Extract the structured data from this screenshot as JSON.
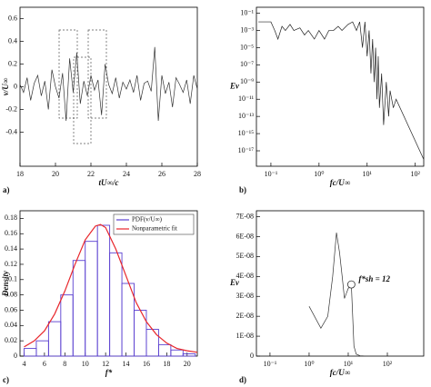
{
  "chart_data": [
    {
      "type": "line",
      "label": "a)",
      "xlabel": "tU∞/c",
      "ylabel": "v/U∞",
      "x": [
        18,
        18.2,
        18.4,
        18.6,
        18.8,
        19,
        19.2,
        19.4,
        19.6,
        19.8,
        20,
        20.2,
        20.4,
        20.6,
        20.8,
        21,
        21.2,
        21.4,
        21.6,
        21.8,
        22,
        22.2,
        22.4,
        22.6,
        22.8,
        23,
        23.2,
        23.4,
        23.6,
        23.8,
        24,
        24.2,
        24.4,
        24.6,
        24.8,
        25,
        25.2,
        25.4,
        25.6,
        25.8,
        26,
        26.2,
        26.4,
        26.6,
        26.8,
        27,
        27.2,
        27.4,
        27.6,
        27.8,
        28
      ],
      "series": [
        {
          "color": "#333333",
          "values": [
            0.02,
            -0.05,
            0.08,
            -0.12,
            0.03,
            0.1,
            -0.08,
            0.05,
            -0.2,
            0.15,
            0.0,
            -0.1,
            0.12,
            -0.3,
            0.25,
            -0.05,
            0.3,
            -0.15,
            0.05,
            -0.08,
            0.1,
            -0.03,
            0.06,
            -0.25,
            0.2,
            0.02,
            -0.06,
            0.08,
            -0.1,
            0.04,
            -0.02,
            0.06,
            -0.05,
            0.1,
            -0.12,
            0.03,
            0.05,
            -0.04,
            0.35,
            -0.3,
            0.1,
            -0.06,
            0.04,
            -0.18,
            0.08,
            0.02,
            -0.05,
            0.06,
            -0.15,
            0.1,
            -0.02
          ]
        }
      ],
      "xlim": [
        18,
        28
      ],
      "xticks": [
        18,
        20,
        22,
        24,
        26,
        28
      ],
      "ylim": [
        -0.7,
        0.7
      ],
      "yticks": [
        -0.4,
        -0.2,
        0,
        0.2,
        0.4,
        0.6
      ]
    },
    {
      "type": "line",
      "label": "b)",
      "xlabel": "fc/U∞",
      "ylabel": "Ev",
      "xlog": true,
      "ylog": true,
      "x": [
        0.055,
        0.08,
        0.1,
        0.12,
        0.14,
        0.17,
        0.2,
        0.25,
        0.3,
        0.4,
        0.5,
        0.6,
        0.8,
        1,
        1.3,
        1.6,
        2,
        2.5,
        3,
        4,
        5,
        6,
        7,
        8,
        9,
        10,
        11,
        12,
        13,
        14,
        15,
        16,
        17,
        18,
        20,
        22,
        25,
        28,
        30,
        35,
        40,
        150
      ],
      "series": [
        {
          "color": "#222222",
          "values": [
            0.01,
            0.01,
            0.01,
            0.001,
            0.0001,
            0.003,
            0.001,
            0.005,
            0.001,
            0.002,
            0.0003,
            0.001,
            0.0001,
            0.001,
            0.0001,
            0.001,
            0.001,
            0.003,
            0.001,
            0.005,
            0.01,
            0.001,
            0.01,
            1e-05,
            0.01,
            1e-06,
            0.001,
            1e-08,
            0.0001,
            1e-09,
            1e-05,
            1e-11,
            1e-06,
            1e-12,
            1e-08,
            1e-14,
            1e-09,
            1e-13,
            1e-10,
            1e-12,
            1e-11,
            1e-18
          ]
        }
      ],
      "xlim": [
        0.05,
        150
      ],
      "xticks": [
        {
          "value": 0.1,
          "label": "10⁻¹"
        },
        {
          "value": 1,
          "label": "10⁰"
        },
        {
          "value": 10,
          "label": "10¹"
        },
        {
          "value": 100,
          "label": "10²"
        }
      ],
      "ylim": [
        1.6e-19,
        0.5
      ],
      "yticks": [
        {
          "value": 0.1,
          "label": "10⁻¹"
        },
        {
          "value": 0.001,
          "label": "10⁻³"
        },
        {
          "value": 1e-05,
          "label": "10⁻⁵"
        },
        {
          "value": 1e-07,
          "label": "10⁻⁷"
        },
        {
          "value": 1e-09,
          "label": "10⁻⁹"
        },
        {
          "value": 1e-11,
          "label": "10⁻¹¹"
        },
        {
          "value": 1e-13,
          "label": "10⁻¹³"
        },
        {
          "value": 1e-15,
          "label": "10⁻¹⁵"
        },
        {
          "value": 1e-17,
          "label": "10⁻¹⁷"
        }
      ]
    },
    {
      "type": "histogram",
      "label": "c)",
      "xlabel": "f*",
      "ylabel": "Density",
      "bins": [
        4,
        5.2,
        6.4,
        7.6,
        8.8,
        10,
        11.2,
        12.4,
        13.6,
        14.8,
        16,
        17.2,
        18.4,
        19.6,
        20.8
      ],
      "series": [
        {
          "type": "histogram",
          "name": "PDF(v/U∞)",
          "color": "#5a3fd0",
          "values": [
            0.01,
            0.02,
            0.045,
            0.08,
            0.125,
            0.15,
            0.171,
            0.135,
            0.095,
            0.06,
            0.035,
            0.015,
            0.008,
            0.003
          ]
        },
        {
          "type": "line",
          "name": "Nonparametric fit",
          "color": "#e8262b",
          "x": [
            4,
            5,
            6,
            7,
            8,
            9,
            10,
            11,
            11.5,
            12,
            13,
            14,
            15,
            16,
            17,
            18,
            19,
            20,
            21
          ],
          "values": [
            0.012,
            0.02,
            0.033,
            0.055,
            0.085,
            0.12,
            0.152,
            0.17,
            0.172,
            0.168,
            0.14,
            0.105,
            0.07,
            0.045,
            0.028,
            0.017,
            0.01,
            0.007,
            0.005
          ]
        }
      ],
      "legend": "upper right",
      "xlim": [
        3.6,
        21
      ],
      "xticks": [
        4,
        6,
        8,
        10,
        12,
        14,
        16,
        18,
        20
      ],
      "ylim": [
        0,
        0.19
      ],
      "yticks": [
        0,
        0.02,
        0.04,
        0.06,
        0.08,
        0.1,
        0.12,
        0.14,
        0.16,
        0.18
      ]
    },
    {
      "type": "line",
      "label": "d)",
      "xlabel": "fc/U∞",
      "ylabel": "Ev",
      "xlog": true,
      "x": [
        1,
        2,
        3,
        4,
        5,
        6,
        7,
        8,
        10,
        11,
        12,
        13,
        14,
        16,
        20,
        30
      ],
      "series": [
        {
          "color": "#333333",
          "values": [
            2.5e-08,
            1.4e-08,
            2e-08,
            4e-08,
            6.2e-08,
            5.2e-08,
            4e-08,
            2.9e-08,
            3.4e-08,
            3.5e-08,
            3.6e-08,
            2e-08,
            5e-09,
            1e-09,
            2e-10,
            0
          ]
        }
      ],
      "annotation": {
        "text": "f*sh = 12",
        "x": 12,
        "y": 3.6e-08
      },
      "xlim": [
        0.045,
        850
      ],
      "xticks": [
        {
          "value": 0.1,
          "label": "10⁻¹"
        },
        {
          "value": 1,
          "label": "10⁰"
        },
        {
          "value": 10,
          "label": "10¹"
        },
        {
          "value": 100,
          "label": "10²"
        }
      ],
      "ylim": [
        0,
        7.3e-08
      ],
      "yticks": [
        0,
        {
          "value": 1e-08,
          "label": "1E-08"
        },
        {
          "value": 2e-08,
          "label": "2E-08"
        },
        {
          "value": 3e-08,
          "label": "3E-08"
        },
        {
          "value": 4e-08,
          "label": "4E-08"
        },
        {
          "value": 5e-08,
          "label": "5E-08"
        },
        {
          "value": 6e-08,
          "label": "6E-08"
        },
        {
          "value": 7e-08,
          "label": "7E-08"
        }
      ]
    }
  ]
}
